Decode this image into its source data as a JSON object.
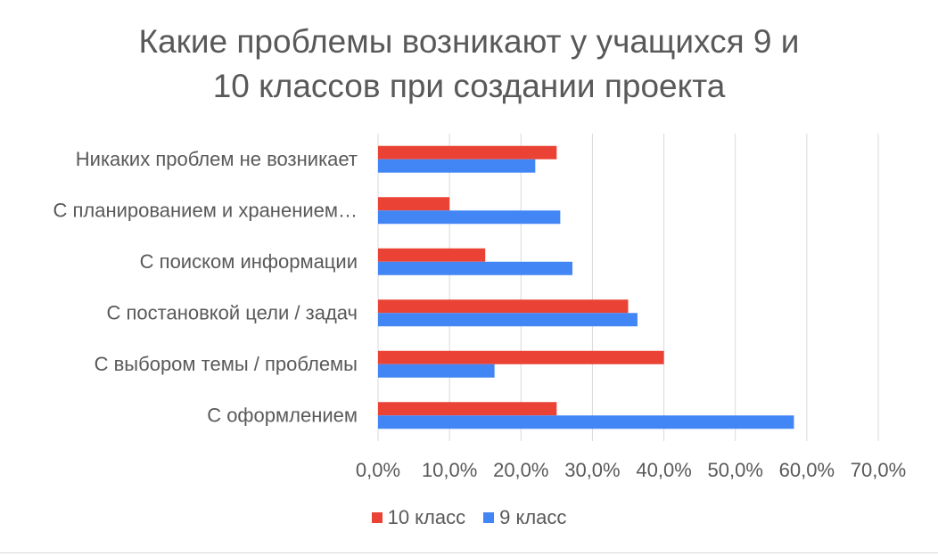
{
  "chart_data": {
    "type": "bar",
    "orientation": "horizontal",
    "title": [
      "Какие проблемы возникают у учащихся 9 и",
      "10 классов при создании проекта"
    ],
    "categories": [
      "Никаких проблем не возникает",
      "С планированием и хранением…",
      "С поиском информации",
      "С постановкой цели / задач",
      "С выбором темы / проблемы",
      "С оформлением"
    ],
    "series": [
      {
        "name": "10 класс",
        "color": "#ea4335",
        "values": [
          25.0,
          10.0,
          15.0,
          35.0,
          40.0,
          25.0
        ]
      },
      {
        "name": "9 класс",
        "color": "#4285f4",
        "values": [
          22.0,
          25.5,
          27.2,
          36.3,
          16.3,
          58.2
        ]
      }
    ],
    "x_ticks": [
      "0,0%",
      "10,0%",
      "20,0%",
      "30,0%",
      "40,0%",
      "50,0%",
      "60,0%",
      "70,0%"
    ],
    "xlim": [
      0,
      70
    ],
    "grid": true,
    "legend_position": "bottom"
  }
}
